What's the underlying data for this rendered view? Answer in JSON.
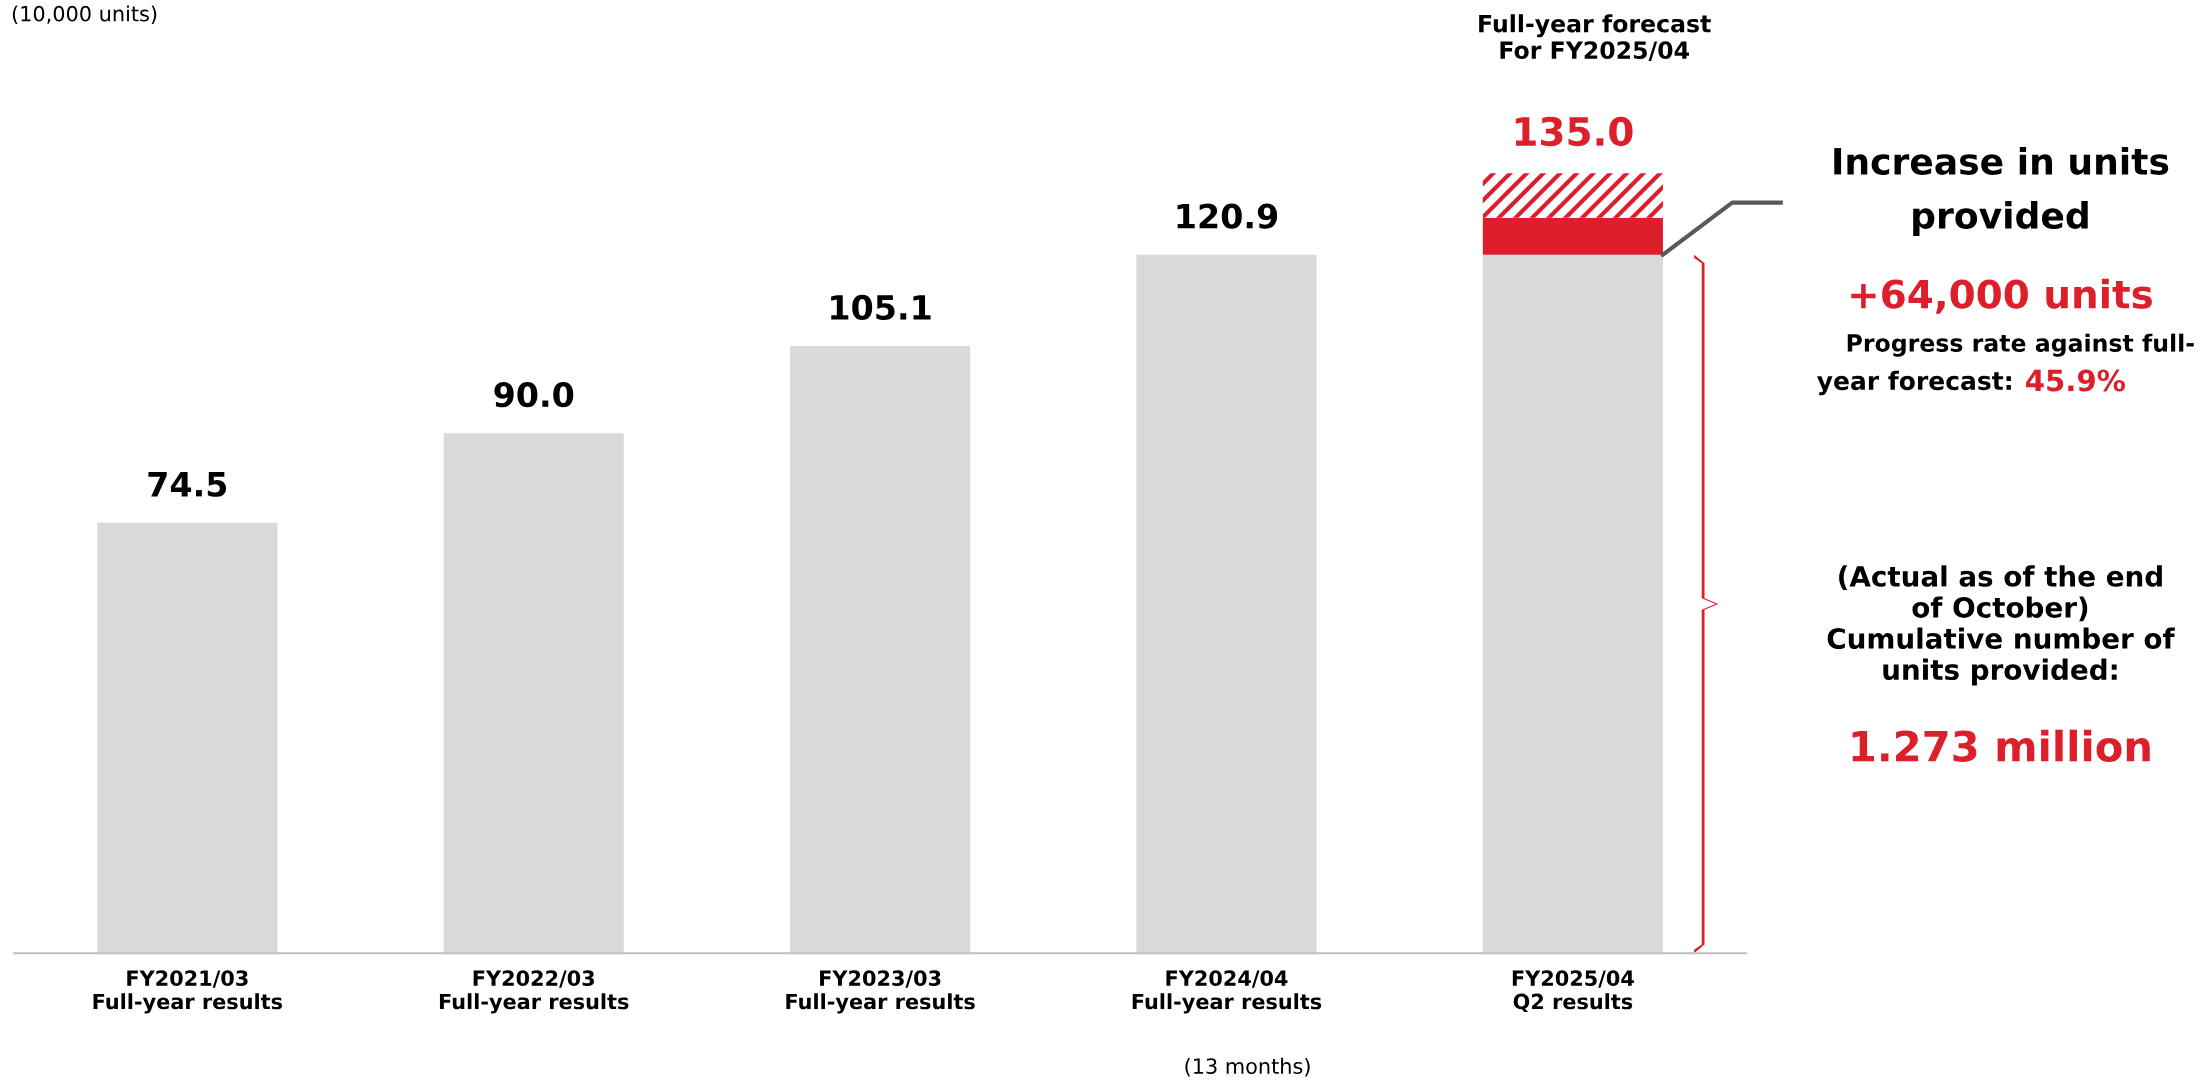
{
  "chart_data": {
    "type": "bar",
    "stacked": true,
    "categories": [
      "FY2021/03\nFull-year results",
      "FY2022/03\nFull-year results",
      "FY2023/03\nFull-year results",
      "FY2024/04\nFull-year results",
      "FY2025/04\nQ2 results"
    ],
    "series": [
      {
        "color": "#d9d9d9",
        "values": [
          74.5,
          90.0,
          105.1,
          120.9,
          120.9
        ],
        "value_labels": [
          "74.5",
          "90.0",
          "105.1",
          "120.9",
          null
        ]
      },
      {
        "color": "#dc1f2b",
        "values": [
          null,
          null,
          null,
          null,
          6.4
        ]
      },
      {
        "color": "#dc1f2b",
        "values": [
          null,
          null,
          null,
          null,
          7.7
        ]
      }
    ],
    "tick_labels": "x",
    "totals": [
      null,
      null,
      null,
      null,
      "135.0"
    ],
    "legend": false,
    "grid": false,
    "annotations": [
      "(10,000 units)",
      "Full-year forecast\nFor FY2025/04",
      "(13 months)",
      "Increase in units\nprovided",
      "+64,000 units",
      "Progress rate against full-",
      "year forecast:",
      "45.9%",
      "(Actual as of the end\nof October)\nCumulative number of\nunits provided:",
      "1.273 million"
    ]
  }
}
